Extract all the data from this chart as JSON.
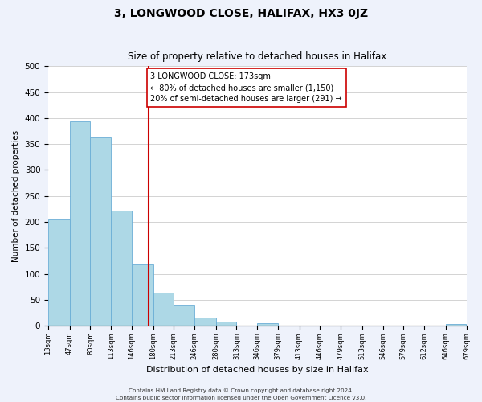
{
  "title": "3, LONGWOOD CLOSE, HALIFAX, HX3 0JZ",
  "subtitle": "Size of property relative to detached houses in Halifax",
  "xlabel": "Distribution of detached houses by size in Halifax",
  "ylabel": "Number of detached properties",
  "bar_edges": [
    13,
    47,
    80,
    113,
    146,
    180,
    213,
    246,
    280,
    313,
    346,
    379,
    413,
    446,
    479,
    513,
    546,
    579,
    612,
    646,
    679
  ],
  "bar_heights": [
    205,
    393,
    363,
    222,
    119,
    63,
    41,
    15,
    8,
    0,
    5,
    0,
    0,
    0,
    0,
    0,
    0,
    0,
    0,
    3
  ],
  "tick_labels": [
    "13sqm",
    "47sqm",
    "80sqm",
    "113sqm",
    "146sqm",
    "180sqm",
    "213sqm",
    "246sqm",
    "280sqm",
    "313sqm",
    "346sqm",
    "379sqm",
    "413sqm",
    "446sqm",
    "479sqm",
    "513sqm",
    "546sqm",
    "579sqm",
    "612sqm",
    "646sqm",
    "679sqm"
  ],
  "property_line_x": 173,
  "bar_color": "#add8e6",
  "bar_edgecolor": "#6baed6",
  "line_color": "#cc0000",
  "annotation_text": "3 LONGWOOD CLOSE: 173sqm\n← 80% of detached houses are smaller (1,150)\n20% of semi-detached houses are larger (291) →",
  "ylim": [
    0,
    500
  ],
  "footnote1": "Contains HM Land Registry data © Crown copyright and database right 2024.",
  "footnote2": "Contains public sector information licensed under the Open Government Licence v3.0.",
  "background_color": "#eef2fb",
  "plot_background": "#ffffff",
  "grid_color": "#cccccc",
  "title_fontsize": 10,
  "subtitle_fontsize": 8.5,
  "annotation_box_edgecolor": "#cc0000",
  "annotation_box_facecolor": "#ffffff"
}
